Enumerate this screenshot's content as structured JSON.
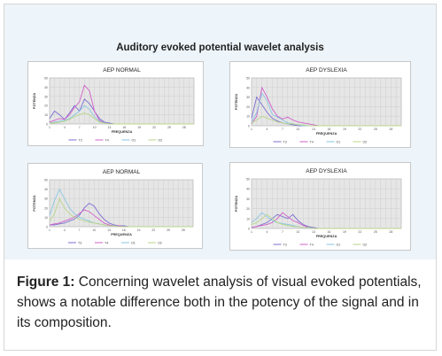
{
  "figure": {
    "title": "Auditory evoked potential wavelet analysis"
  },
  "caption": {
    "label": "Figure 1:",
    "text": " Concerning wavelet analysis of visual evoked potentials, shows a notable difference both in the potency of the signal and in its composition."
  },
  "colors": {
    "T3": "#7b6fd0",
    "T4": "#d060c8",
    "O1": "#88c6e0",
    "O2": "#b8d68a",
    "grid": "#cfcfcf",
    "plot_bg": "#e6e6e6"
  },
  "chart_data": [
    {
      "type": "line",
      "title": "AEP NORMAL",
      "xlabel": "FREQUENZA",
      "ylabel": "POTENZA",
      "ylim": [
        0,
        50
      ],
      "grid": true,
      "legend": "bottom",
      "x": [
        1,
        2,
        3,
        4,
        5,
        6,
        7,
        8,
        9,
        10,
        11,
        12,
        13,
        14,
        15,
        16,
        17,
        18,
        19,
        20,
        21,
        22,
        23,
        24,
        25,
        26,
        27,
        28,
        29,
        30
      ],
      "series": [
        {
          "name": "T3",
          "values": [
            6,
            14,
            10,
            5,
            12,
            20,
            14,
            27,
            22,
            14,
            6,
            2,
            1,
            0,
            0,
            0,
            0,
            0,
            0,
            0,
            0,
            0,
            0,
            0,
            0,
            0,
            0,
            0,
            0,
            0
          ]
        },
        {
          "name": "T4",
          "values": [
            2,
            4,
            6,
            5,
            10,
            18,
            24,
            42,
            36,
            14,
            4,
            1,
            0,
            0,
            0,
            0,
            0,
            0,
            0,
            0,
            0,
            0,
            0,
            0,
            0,
            0,
            0,
            0,
            0,
            0
          ]
        },
        {
          "name": "O1",
          "values": [
            1,
            2,
            3,
            4,
            6,
            10,
            14,
            20,
            16,
            8,
            3,
            1,
            0,
            0,
            0,
            0,
            0,
            0,
            0,
            0,
            0,
            0,
            0,
            0,
            0,
            0,
            0,
            0,
            0,
            0
          ]
        },
        {
          "name": "O2",
          "values": [
            1,
            1,
            2,
            3,
            5,
            8,
            10,
            12,
            10,
            6,
            2,
            1,
            0,
            0,
            0,
            0,
            0,
            0,
            0,
            0,
            0,
            0,
            0,
            0,
            0,
            0,
            0,
            0,
            0,
            0
          ]
        }
      ]
    },
    {
      "type": "line",
      "title": "AEP DYSLEXIA",
      "xlabel": "FREQUENZA",
      "ylabel": "POTENZA",
      "ylim": [
        0,
        50
      ],
      "grid": true,
      "legend": "bottom",
      "x": [
        1,
        2,
        3,
        4,
        5,
        6,
        7,
        8,
        9,
        10,
        11,
        12,
        13,
        14,
        15,
        16,
        17,
        18,
        19,
        20,
        21,
        22,
        23,
        24,
        25,
        26,
        27,
        28,
        29,
        30
      ],
      "series": [
        {
          "name": "T3",
          "values": [
            8,
            30,
            22,
            14,
            8,
            5,
            3,
            2,
            1,
            0,
            0,
            0,
            0,
            0,
            0,
            0,
            0,
            0,
            0,
            0,
            0,
            0,
            0,
            0,
            0,
            0,
            0,
            0,
            0,
            0
          ]
        },
        {
          "name": "T4",
          "values": [
            2,
            10,
            40,
            30,
            18,
            10,
            7,
            9,
            6,
            4,
            3,
            2,
            1,
            0,
            0,
            0,
            0,
            0,
            0,
            0,
            0,
            0,
            0,
            0,
            0,
            0,
            0,
            0,
            0,
            0
          ]
        },
        {
          "name": "O1",
          "values": [
            4,
            14,
            34,
            26,
            12,
            9,
            6,
            3,
            2,
            1,
            0,
            0,
            0,
            0,
            0,
            0,
            0,
            0,
            0,
            0,
            0,
            0,
            0,
            0,
            0,
            0,
            0,
            0,
            0,
            0
          ]
        },
        {
          "name": "O2",
          "values": [
            3,
            6,
            10,
            8,
            6,
            4,
            3,
            2,
            2,
            1,
            1,
            0,
            0,
            0,
            0,
            0,
            0,
            0,
            0,
            0,
            0,
            0,
            0,
            0,
            0,
            0,
            0,
            0,
            0,
            0
          ]
        }
      ]
    },
    {
      "type": "line",
      "title": "AEP NORMAL",
      "xlabel": "FREQUENZA",
      "ylabel": "POTENZA",
      "ylim": [
        0,
        50
      ],
      "grid": true,
      "legend": "bottom",
      "x": [
        1,
        2,
        3,
        4,
        5,
        6,
        7,
        8,
        9,
        10,
        11,
        12,
        13,
        14,
        15,
        16,
        17,
        18,
        19,
        20,
        21,
        22,
        23,
        24,
        25,
        26,
        27,
        28,
        29,
        30
      ],
      "series": [
        {
          "name": "T3",
          "values": [
            2,
            2,
            3,
            4,
            6,
            8,
            12,
            20,
            25,
            22,
            14,
            8,
            4,
            2,
            1,
            1,
            0,
            0,
            0,
            0,
            0,
            0,
            0,
            0,
            0,
            0,
            0,
            0,
            0,
            0
          ]
        },
        {
          "name": "T4",
          "values": [
            2,
            3,
            4,
            6,
            8,
            10,
            14,
            18,
            16,
            12,
            8,
            4,
            2,
            1,
            1,
            0,
            0,
            0,
            0,
            0,
            0,
            0,
            0,
            0,
            0,
            0,
            0,
            0,
            0,
            0
          ]
        },
        {
          "name": "O1",
          "values": [
            12,
            28,
            40,
            30,
            20,
            14,
            10,
            8,
            6,
            4,
            3,
            2,
            1,
            1,
            0,
            0,
            0,
            0,
            0,
            0,
            0,
            0,
            0,
            0,
            0,
            0,
            0,
            0,
            0,
            0
          ]
        },
        {
          "name": "O2",
          "values": [
            6,
            14,
            30,
            20,
            14,
            10,
            8,
            6,
            5,
            4,
            3,
            2,
            1,
            1,
            0,
            0,
            0,
            0,
            0,
            0,
            0,
            0,
            0,
            0,
            0,
            0,
            0,
            0,
            0,
            0
          ]
        }
      ]
    },
    {
      "type": "line",
      "title": "AEP DYSLEXIA",
      "xlabel": "FREQUENZA",
      "ylabel": "POTENZA",
      "ylim": [
        0,
        50
      ],
      "grid": true,
      "legend": "bottom",
      "x": [
        1,
        2,
        3,
        4,
        5,
        6,
        7,
        8,
        9,
        10,
        11,
        12,
        13,
        14,
        15,
        16,
        17,
        18,
        19,
        20,
        21,
        22,
        23,
        24,
        25,
        26,
        27,
        28,
        29,
        30
      ],
      "series": [
        {
          "name": "T3",
          "values": [
            1,
            2,
            4,
            6,
            10,
            14,
            12,
            10,
            14,
            8,
            4,
            2,
            1,
            0,
            0,
            0,
            0,
            0,
            0,
            0,
            0,
            0,
            0,
            0,
            0,
            0,
            0,
            0,
            0,
            0
          ]
        },
        {
          "name": "T4",
          "values": [
            1,
            2,
            3,
            4,
            6,
            10,
            16,
            12,
            8,
            6,
            3,
            1,
            0,
            0,
            0,
            0,
            0,
            0,
            0,
            0,
            0,
            0,
            0,
            0,
            0,
            0,
            0,
            0,
            0,
            0
          ]
        },
        {
          "name": "O1",
          "values": [
            6,
            10,
            16,
            12,
            8,
            6,
            5,
            4,
            3,
            2,
            1,
            1,
            0,
            0,
            0,
            0,
            0,
            0,
            0,
            0,
            0,
            0,
            0,
            0,
            0,
            0,
            0,
            0,
            0,
            0
          ]
        },
        {
          "name": "O2",
          "values": [
            4,
            6,
            10,
            14,
            10,
            6,
            4,
            3,
            2,
            2,
            1,
            1,
            0,
            0,
            0,
            0,
            0,
            0,
            0,
            0,
            0,
            0,
            0,
            0,
            0,
            0,
            0,
            0,
            0,
            0
          ]
        }
      ]
    }
  ]
}
